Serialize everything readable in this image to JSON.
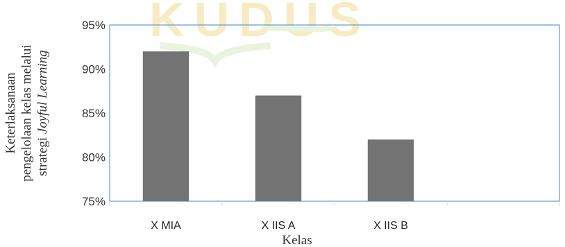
{
  "chart_data": {
    "type": "bar",
    "categories": [
      "X MIA",
      "X IIS A",
      "X IIS B",
      ""
    ],
    "values": [
      0.92,
      0.87,
      0.82,
      null
    ],
    "xlabel": "Kelas",
    "ylabel_lines": [
      "Keterlaksanaan",
      "pengelolaan kelas melalui",
      "strategi "
    ],
    "ylabel_italic": "Joyful Learning",
    "yticks": [
      "95%",
      "90%",
      "85%",
      "80%",
      "75%"
    ],
    "ylim": [
      0.75,
      0.95
    ],
    "bar_color": "#737373",
    "plot_border_color": "#5b9bd5",
    "grid": false,
    "legend": "none"
  },
  "watermark": "KUDUS"
}
